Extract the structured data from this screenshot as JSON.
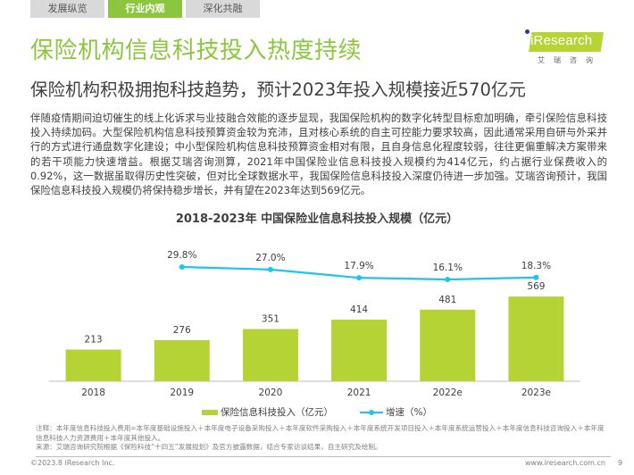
{
  "nav": {
    "tabs": [
      {
        "label": "发展纵览",
        "active": false
      },
      {
        "label": "行业内观",
        "active": true
      },
      {
        "label": "深化共融",
        "active": false
      }
    ]
  },
  "brand": {
    "logo_text": "iResearch",
    "logo_cn": "艾瑞咨询",
    "accent": "#8cc63f",
    "logo_green": "#b6d433"
  },
  "header": {
    "title": "保险机构信息科技投入热度持续",
    "subtitle": "保险机构积极拥抱科技趋势，预计2023年投入规模接近570亿元"
  },
  "body_text": "伴随疫情期间迫切催生的线上化诉求与业技融合效能的逐步显现，我国保险机构的数字化转型目标愈加明确，牵引保险信息科技投入持续加码。大型保险机构信息科技预算资金较为充沛，且对核心系统的自主可控能力要求较高，因此通常采用自研与外采并行的方式进行通盘数字化建设；中小型保险机构信息科技预算资金相对有限，且自身信息化程度较弱，往往更偏重解决方案带来的若干项能力快速增益。根据艾瑞咨询测算，2021年中国保险业信息科技投入规模约为414亿元，约占据行业保费收入的0.92%，这一数据虽取得历史性突破，但对比全球数据水平，我国保险信息科技投入深度仍待进一步加强。艾瑞咨询预计，我国保险信息科技投入规模仍将保持稳步增长，并有望在2023年达到569亿元。",
  "chart_data": {
    "type": "bar",
    "title": "2018-2023年 中国保险业信息科技投入规模（亿元）",
    "categories": [
      "2018",
      "2019",
      "2020",
      "2021",
      "2022e",
      "2023e"
    ],
    "series": [
      {
        "name": "保险信息科技投入（亿元）",
        "type": "bar",
        "values": [
          213,
          276,
          351,
          414,
          481,
          569
        ],
        "labels": [
          "213",
          "276",
          "351",
          "414",
          "481",
          "569"
        ],
        "color": "#b5d334"
      },
      {
        "name": "增速（%）",
        "type": "line",
        "values": [
          29.8,
          27.0,
          17.9,
          16.1,
          18.3
        ],
        "x": [
          "2019",
          "2020",
          "2021",
          "2022e",
          "2023e"
        ],
        "labels": [
          "29.8%",
          "27.0%",
          "17.9%",
          "16.1%",
          "18.3%"
        ],
        "color": "#1ec3ef"
      }
    ],
    "xlabel": "",
    "ylabel": "",
    "grid": false,
    "legend": "bottom-center"
  },
  "notes": {
    "note": "注释：本年度信息科技投入费用=本年度基础设施投入＋本年度电子设备采购投入＋本年度软件采购投入＋本年度系统开发项目投入＋本年度系统运营投入＋本年度信息科技咨询投入＋本年度信息科技人力资源费用＋本年度其他投入。",
    "source": "来源：艾瑞咨询研究院根据《保险科技“十四五”发展规划》及官方披露数据，结合专家访谈结果，自主研究及绘制。"
  },
  "footer": {
    "copyright": "©2023.8 iResearch Inc.",
    "website": "www.iresearch.com.cn",
    "page": "9"
  }
}
